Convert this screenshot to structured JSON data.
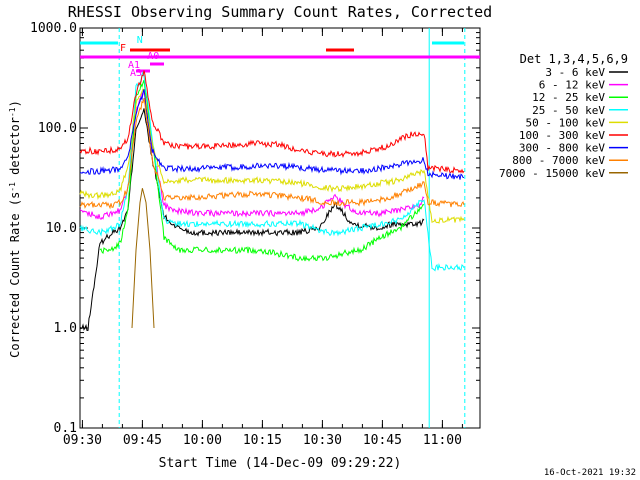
{
  "chart_data": {
    "type": "line",
    "title": "RHESSI Observing Summary Count Rates, Corrected",
    "xlabel": "Start Time (14-Dec-09 09:29:22)",
    "ylabel_parts": [
      "Corrected Count Rate (s",
      "-1",
      " detector",
      "-1",
      ")"
    ],
    "y_scale": "log",
    "ylim": [
      0.1,
      1000
    ],
    "xlim_minutes": [
      0,
      100
    ],
    "x_ticks": [
      {
        "minute": 0.6,
        "label": "09:30"
      },
      {
        "minute": 15.6,
        "label": "09:45"
      },
      {
        "minute": 30.6,
        "label": "10:00"
      },
      {
        "minute": 45.6,
        "label": "10:15"
      },
      {
        "minute": 60.6,
        "label": "10:30"
      },
      {
        "minute": 75.6,
        "label": "10:45"
      },
      {
        "minute": 90.6,
        "label": "11:00"
      }
    ],
    "y_ticks": [
      {
        "value": 0.1,
        "label": "0.1"
      },
      {
        "value": 1,
        "label": "1.0"
      },
      {
        "value": 10,
        "label": "10.0"
      },
      {
        "value": 100,
        "label": "100.0"
      },
      {
        "value": 1000,
        "label": "1000.0"
      }
    ],
    "legend_header": "Det 1,3,4,5,6,9",
    "legend_position": "right",
    "timestamp": "16-Oct-2021 19:32",
    "series": [
      {
        "name": "3 - 6 keV",
        "color": "#000000",
        "points": [
          [
            0,
            1
          ],
          [
            2,
            1
          ],
          [
            5,
            7
          ],
          [
            8,
            9
          ],
          [
            10,
            10
          ],
          [
            12,
            15
          ],
          [
            14,
            100
          ],
          [
            16,
            150
          ],
          [
            18,
            50
          ],
          [
            21,
            13
          ],
          [
            23,
            11
          ],
          [
            25,
            10
          ],
          [
            28,
            9
          ],
          [
            35,
            9
          ],
          [
            45,
            9
          ],
          [
            55,
            9
          ],
          [
            60,
            10
          ],
          [
            62,
            14
          ],
          [
            64,
            17
          ],
          [
            66,
            14
          ],
          [
            68,
            11
          ],
          [
            75,
            10
          ],
          [
            78,
            11
          ],
          [
            80,
            11
          ],
          [
            85,
            11
          ],
          [
            86,
            12
          ]
        ]
      },
      {
        "name": "6 - 12 keV",
        "color": "#ff00ff",
        "points": [
          [
            0,
            15
          ],
          [
            5,
            13
          ],
          [
            8,
            14
          ],
          [
            10,
            15
          ],
          [
            12,
            25
          ],
          [
            14,
            150
          ],
          [
            16,
            240
          ],
          [
            18,
            70
          ],
          [
            21,
            17
          ],
          [
            23,
            15
          ],
          [
            30,
            14
          ],
          [
            40,
            14
          ],
          [
            50,
            14
          ],
          [
            55,
            14
          ],
          [
            60,
            16
          ],
          [
            64,
            21
          ],
          [
            66,
            17
          ],
          [
            70,
            14
          ],
          [
            75,
            14
          ],
          [
            80,
            15
          ],
          [
            85,
            17
          ],
          [
            86,
            20
          ]
        ]
      },
      {
        "name": "12 - 25 keV",
        "color": "#00ff00",
        "points": [
          [
            5,
            6
          ],
          [
            8,
            6
          ],
          [
            10,
            7
          ],
          [
            12,
            15
          ],
          [
            14,
            200
          ],
          [
            16,
            300
          ],
          [
            18,
            80
          ],
          [
            21,
            8
          ],
          [
            25,
            6
          ],
          [
            35,
            6
          ],
          [
            45,
            6
          ],
          [
            55,
            5
          ],
          [
            62,
            5
          ],
          [
            65,
            5.5
          ],
          [
            70,
            6
          ],
          [
            75,
            8
          ],
          [
            80,
            10
          ],
          [
            86,
            17
          ]
        ]
      },
      {
        "name": "25 - 50 keV",
        "color": "#00ffff",
        "points": [
          [
            0,
            10
          ],
          [
            5,
            9
          ],
          [
            8,
            10
          ],
          [
            10,
            11
          ],
          [
            12,
            25
          ],
          [
            14,
            250
          ],
          [
            16,
            350
          ],
          [
            18,
            80
          ],
          [
            21,
            12
          ],
          [
            25,
            11
          ],
          [
            35,
            11
          ],
          [
            45,
            11
          ],
          [
            55,
            11
          ],
          [
            62,
            9
          ],
          [
            65,
            9
          ],
          [
            70,
            10
          ],
          [
            75,
            11
          ],
          [
            80,
            12
          ],
          [
            86,
            20
          ],
          [
            88,
            4
          ],
          [
            96,
            4
          ]
        ]
      },
      {
        "name": "50 - 100 keV",
        "color": "#dddd00",
        "points": [
          [
            0,
            22
          ],
          [
            5,
            21
          ],
          [
            8,
            22
          ],
          [
            10,
            24
          ],
          [
            12,
            40
          ],
          [
            14,
            180
          ],
          [
            16,
            250
          ],
          [
            18,
            70
          ],
          [
            21,
            28
          ],
          [
            25,
            30
          ],
          [
            35,
            30
          ],
          [
            45,
            30
          ],
          [
            55,
            28
          ],
          [
            62,
            25
          ],
          [
            65,
            25
          ],
          [
            70,
            26
          ],
          [
            75,
            28
          ],
          [
            80,
            30
          ],
          [
            86,
            38
          ],
          [
            88,
            12
          ],
          [
            96,
            12
          ]
        ]
      },
      {
        "name": "100 - 300 keV",
        "color": "#ff0000",
        "points": [
          [
            0,
            60
          ],
          [
            5,
            58
          ],
          [
            8,
            60
          ],
          [
            10,
            62
          ],
          [
            12,
            80
          ],
          [
            14,
            220
          ],
          [
            16,
            380
          ],
          [
            18,
            120
          ],
          [
            21,
            70
          ],
          [
            25,
            65
          ],
          [
            35,
            66
          ],
          [
            45,
            70
          ],
          [
            50,
            68
          ],
          [
            55,
            60
          ],
          [
            62,
            55
          ],
          [
            68,
            55
          ],
          [
            72,
            58
          ],
          [
            78,
            68
          ],
          [
            82,
            85
          ],
          [
            86,
            90
          ],
          [
            87,
            40
          ],
          [
            96,
            37
          ]
        ]
      },
      {
        "name": "300 - 800 keV",
        "color": "#0000ff",
        "points": [
          [
            0,
            37
          ],
          [
            5,
            37
          ],
          [
            8,
            38
          ],
          [
            10,
            39
          ],
          [
            12,
            50
          ],
          [
            14,
            140
          ],
          [
            16,
            230
          ],
          [
            18,
            60
          ],
          [
            21,
            40
          ],
          [
            25,
            39
          ],
          [
            35,
            40
          ],
          [
            45,
            42
          ],
          [
            50,
            42
          ],
          [
            55,
            40
          ],
          [
            62,
            38
          ],
          [
            68,
            37
          ],
          [
            72,
            38
          ],
          [
            78,
            41
          ],
          [
            82,
            45
          ],
          [
            86,
            48
          ],
          [
            87,
            35
          ],
          [
            96,
            32
          ]
        ]
      },
      {
        "name": "800 - 7000 keV",
        "color": "#ff8000",
        "points": [
          [
            0,
            17
          ],
          [
            5,
            17
          ],
          [
            8,
            17
          ],
          [
            10,
            18
          ],
          [
            12,
            25
          ],
          [
            14,
            120
          ],
          [
            16,
            200
          ],
          [
            18,
            50
          ],
          [
            21,
            20
          ],
          [
            25,
            20
          ],
          [
            35,
            21
          ],
          [
            45,
            22
          ],
          [
            55,
            20
          ],
          [
            62,
            18
          ],
          [
            65,
            18
          ],
          [
            70,
            18
          ],
          [
            75,
            19
          ],
          [
            80,
            22
          ],
          [
            86,
            28
          ],
          [
            87,
            18
          ],
          [
            96,
            17
          ]
        ]
      },
      {
        "name": "7000 - 15000 keV",
        "color": "#996600",
        "points": [
          [
            13,
            1
          ],
          [
            14,
            6
          ],
          [
            15,
            18
          ],
          [
            15.6,
            25
          ],
          [
            16.5,
            18
          ],
          [
            17.5,
            6
          ],
          [
            18.5,
            1
          ]
        ]
      }
    ],
    "flag_labels": [
      {
        "text": "N",
        "color": "#00ffff"
      },
      {
        "text": "F",
        "color": "#ff0000"
      },
      {
        "text": "A0",
        "color": "#ff00ff"
      },
      {
        "text": "A1",
        "color": "#ff00ff"
      },
      {
        "text": "A3",
        "color": "#ff00ff"
      }
    ],
    "flag_bars": [
      {
        "label": "N",
        "color": "#00ffff",
        "y": 1.0,
        "segments": [
          [
            0,
            9.5
          ],
          [
            88,
            96
          ]
        ]
      },
      {
        "label": "F",
        "color": "#ff0000",
        "y": 2.0,
        "segments": [
          [
            12.5,
            22.5
          ],
          [
            61.5,
            68.5
          ]
        ]
      },
      {
        "label": "A0",
        "color": "#ff00ff",
        "y": 3.0,
        "segments": [
          [
            0,
            100
          ]
        ]
      },
      {
        "label": "A1",
        "color": "#ff00ff",
        "y": 4.0,
        "segments": [
          [
            17.5,
            21
          ]
        ]
      },
      {
        "label": "A3",
        "color": "#ff00ff",
        "y": 5.0,
        "segments": [
          [
            14,
            17.5
          ]
        ]
      }
    ],
    "vlines": [
      {
        "minute": 9.8,
        "style": "dashed",
        "color": "#00ffff"
      },
      {
        "minute": 87.3,
        "style": "solid",
        "color": "#00ffff"
      },
      {
        "minute": 96.2,
        "style": "dashed",
        "color": "#00ffff"
      }
    ],
    "grid": false
  }
}
